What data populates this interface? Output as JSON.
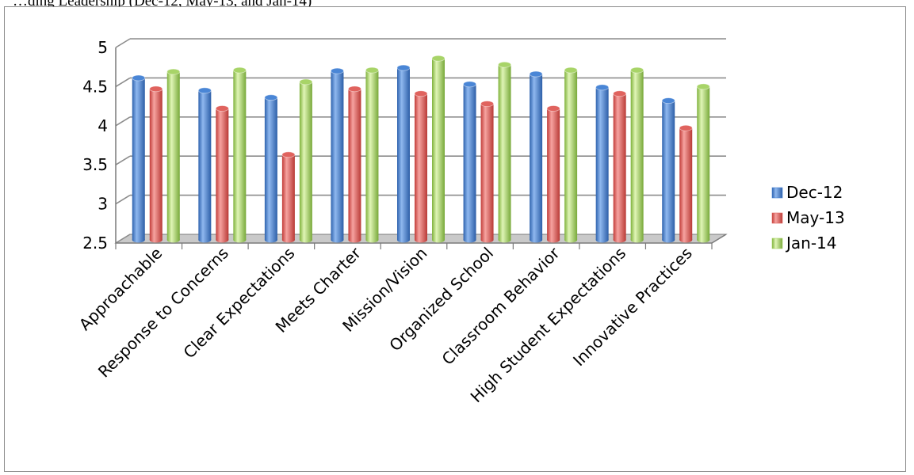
{
  "caption": "…ding Leadership (Dec-12, May-13, and Jan-14)",
  "chart_data": {
    "type": "bar",
    "title": "",
    "xlabel": "",
    "ylabel": "",
    "categories": [
      "Approachable",
      "Response to Concerns",
      "Clear Expectations",
      "Meets Charter",
      "Mission/Vision",
      "Organized School",
      "Classroom Behavior",
      "High Student Expectations",
      "Innovative Practices"
    ],
    "series": [
      {
        "name": "Dec-12",
        "color": "#4a86d6",
        "values": [
          4.57,
          4.41,
          4.32,
          4.66,
          4.7,
          4.49,
          4.62,
          4.45,
          4.28
        ]
      },
      {
        "name": "May-13",
        "color": "#e0635e",
        "values": [
          4.43,
          4.18,
          3.59,
          4.43,
          4.37,
          4.24,
          4.18,
          4.37,
          3.93
        ]
      },
      {
        "name": "Jan-14",
        "color": "#a8d468",
        "values": [
          4.65,
          4.67,
          4.52,
          4.67,
          4.82,
          4.74,
          4.67,
          4.67,
          4.46
        ]
      }
    ],
    "ylim": [
      2.5,
      5
    ],
    "yticks": [
      "2.5",
      "3",
      "3.5",
      "4",
      "4.5",
      "5"
    ],
    "grid": true,
    "legend_position": "right",
    "style": "3d-cylinder"
  }
}
